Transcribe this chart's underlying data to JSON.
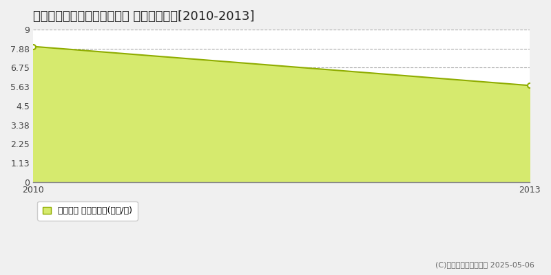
{
  "title": "東茨城郡茨城町中央工業団地 土地価格推移[2010-2013]",
  "x_values": [
    2010,
    2013
  ],
  "y_values": [
    8.0,
    5.7
  ],
  "yticks": [
    0,
    1.13,
    2.25,
    3.38,
    4.5,
    5.63,
    6.75,
    7.88,
    9
  ],
  "ytick_labels": [
    "0",
    "1.13",
    "2.25",
    "3.38",
    "4.5",
    "5.63",
    "6.75",
    "7.88",
    "9"
  ],
  "xlim": [
    2010,
    2013
  ],
  "ylim": [
    0,
    9
  ],
  "line_color": "#8fac00",
  "fill_color": "#d6ea6e",
  "fill_alpha": 1.0,
  "bg_color": "#f0f0f0",
  "plot_bg_color": "#ffffff",
  "grid_color": "#aaaaaa",
  "marker_color": "#ffffff",
  "marker_edge_color": "#8fac00",
  "legend_label": "土地価格 平均坪単価(万円/坪)",
  "copyright_text": "(C)土地価格ドットコム 2025-05-06",
  "title_fontsize": 13,
  "tick_fontsize": 9,
  "legend_fontsize": 9,
  "copyright_fontsize": 8
}
